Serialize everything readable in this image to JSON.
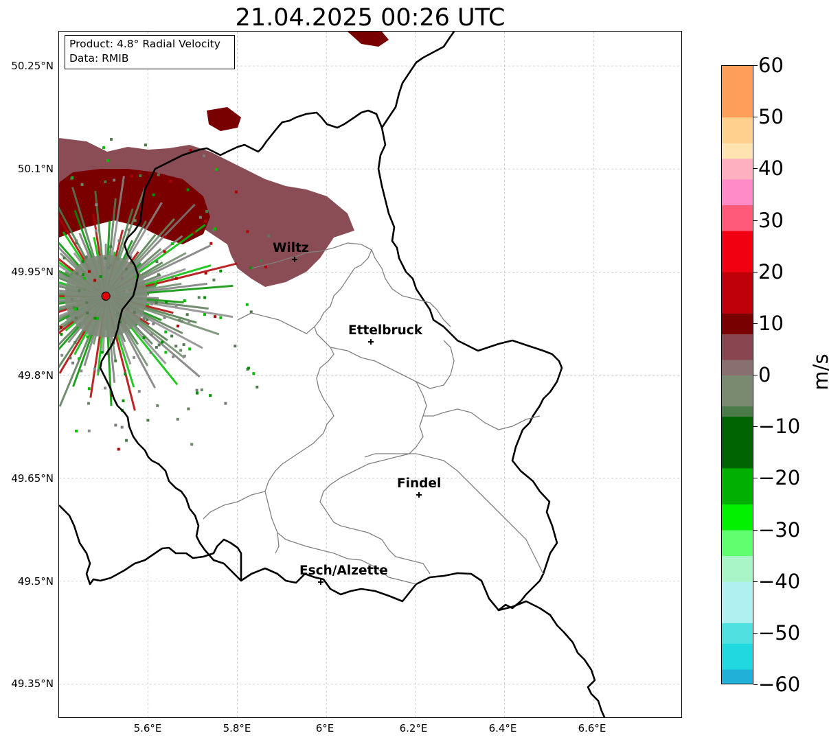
{
  "title": "21.04.2025 00:26 UTC",
  "info": {
    "product": "Product: 4.8° Radial Velocity",
    "data": "Data: RMIB"
  },
  "axes": {
    "lat_labels": [
      "50.25°N",
      "50.1°N",
      "49.95°N",
      "49.8°N",
      "49.65°N",
      "49.5°N",
      "49.35°N"
    ],
    "lon_labels": [
      "5.6°E",
      "5.8°E",
      "6°E",
      "6.2°E",
      "6.4°E",
      "6.6°E"
    ]
  },
  "map_extent": {
    "lon_min": 5.4,
    "lon_max": 6.8,
    "lat_min": 49.3,
    "lat_max": 50.3
  },
  "cities": [
    {
      "name": "Wiltz",
      "lon": 5.93,
      "lat": 49.97
    },
    {
      "name": "Ettelbruck",
      "lon": 6.1,
      "lat": 49.85
    },
    {
      "name": "Findel",
      "lon": 6.21,
      "lat": 49.63
    },
    {
      "name": "Esch/Alzette",
      "lon": 5.99,
      "lat": 49.5
    }
  ],
  "radar_site": {
    "lon": 5.505,
    "lat": 49.915,
    "color": "#e00000"
  },
  "colorbar": {
    "unit": "m/s",
    "ticks": [
      "60",
      "50",
      "40",
      "30",
      "20",
      "10",
      "0",
      "−10",
      "−20",
      "−30",
      "−40",
      "−50",
      "−60"
    ],
    "min": -60,
    "max": 60,
    "stops": [
      {
        "v": 60,
        "c": "#ff9e5a"
      },
      {
        "v": 50,
        "c": "#ffd08e"
      },
      {
        "v": 45,
        "c": "#ffe3b0"
      },
      {
        "v": 42,
        "c": "#ffb0c0"
      },
      {
        "v": 38,
        "c": "#ff8cc8"
      },
      {
        "v": 33,
        "c": "#ff5a7a"
      },
      {
        "v": 28,
        "c": "#f00010"
      },
      {
        "v": 20,
        "c": "#c00008"
      },
      {
        "v": 12,
        "c": "#780000"
      },
      {
        "v": 8,
        "c": "#884650"
      },
      {
        "v": 3,
        "c": "#887070"
      },
      {
        "v": 0,
        "c": "#7a8a70"
      },
      {
        "v": -6,
        "c": "#4a7a48"
      },
      {
        "v": -8,
        "c": "#006400"
      },
      {
        "v": -18,
        "c": "#00b000"
      },
      {
        "v": -25,
        "c": "#00f000"
      },
      {
        "v": -30,
        "c": "#60ff70"
      },
      {
        "v": -35,
        "c": "#aaf5c8"
      },
      {
        "v": -40,
        "c": "#b0f0f0"
      },
      {
        "v": -48,
        "c": "#50e0e0"
      },
      {
        "v": -52,
        "c": "#20d8e0"
      },
      {
        "v": -57,
        "c": "#20b0d8"
      },
      {
        "v": -60,
        "c": "#2080c8"
      }
    ]
  }
}
